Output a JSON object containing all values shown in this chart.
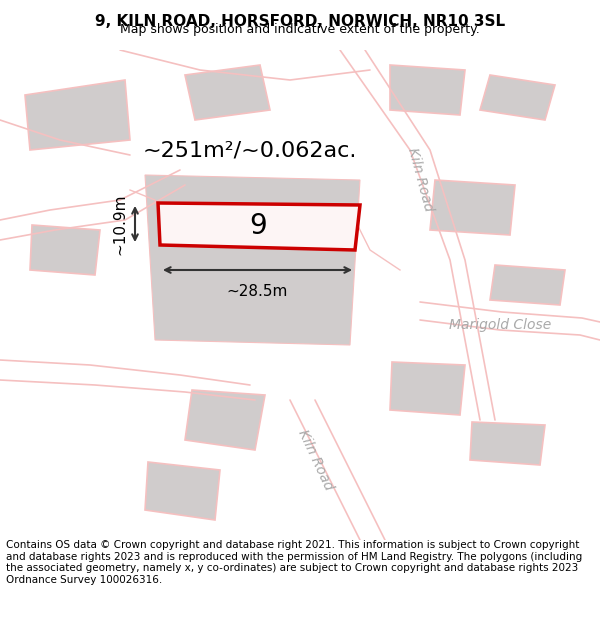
{
  "title": "9, KILN ROAD, HORSFORD, NORWICH, NR10 3SL",
  "subtitle": "Map shows position and indicative extent of the property.",
  "footer": "Contains OS data © Crown copyright and database right 2021. This information is subject to Crown copyright and database rights 2023 and is reproduced with the permission of HM Land Registry. The polygons (including the associated geometry, namely x, y co-ordinates) are subject to Crown copyright and database rights 2023 Ordnance Survey 100026316.",
  "bg_color": "#f5f5f5",
  "map_bg": "#f0eeee",
  "building_color": "#d0cccc",
  "road_color": "#f5c0c0",
  "highlight_color": "#cc0000",
  "highlight_fill": "#f5eeee",
  "dim_color": "#222222",
  "road_label_color": "#aaaaaa",
  "area_text": "~251m²/~0.062ac.",
  "number_label": "9",
  "width_label": "~28.5m",
  "height_label": "~10.9m",
  "title_fontsize": 11,
  "subtitle_fontsize": 9,
  "footer_fontsize": 7.5
}
